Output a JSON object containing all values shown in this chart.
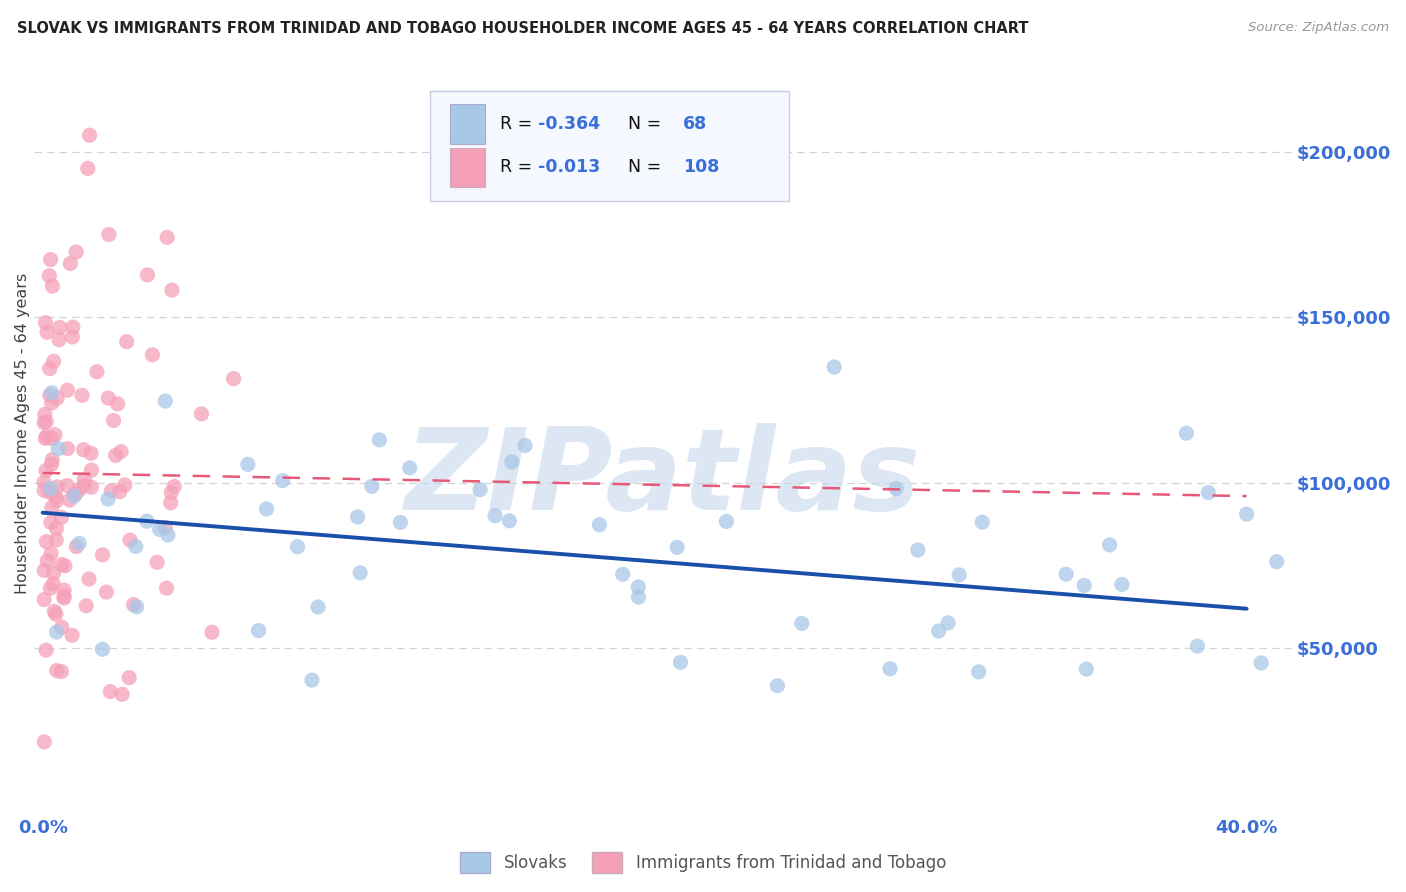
{
  "title": "SLOVAK VS IMMIGRANTS FROM TRINIDAD AND TOBAGO HOUSEHOLDER INCOME AGES 45 - 64 YEARS CORRELATION CHART",
  "source": "Source: ZipAtlas.com",
  "ylabel": "Householder Income Ages 45 - 64 years",
  "xlim": [
    -0.003,
    0.415
  ],
  "ylim": [
    0,
    230000
  ],
  "yticks": [
    50000,
    100000,
    150000,
    200000
  ],
  "ytick_labels": [
    "$50,000",
    "$100,000",
    "$150,000",
    "$200,000"
  ],
  "xtick_positions": [
    0.0,
    0.1,
    0.2,
    0.3,
    0.4
  ],
  "xtick_labels": [
    "0.0%",
    "",
    "",
    "",
    "40.0%"
  ],
  "blue_R": -0.364,
  "blue_N": 68,
  "pink_R": -0.013,
  "pink_N": 108,
  "blue_dot_color": "#a8c8e8",
  "pink_dot_color": "#f5a0b8",
  "blue_line_color": "#1a4faa",
  "pink_line_color": "#e85878",
  "grid_color": "#cccccc",
  "bg_color": "#ffffff",
  "watermark_color": "#c5d8ec",
  "title_color": "#222222",
  "tick_color": "#3a6fd8",
  "ylabel_color": "#444444",
  "legend_bg": "#f5f8ff",
  "legend_border": "#c8cce0",
  "blue_line_x0": 0.0,
  "blue_line_x1": 0.4,
  "blue_line_y0": 91000,
  "blue_line_y1": 62000,
  "pink_line_x0": 0.0,
  "pink_line_x1": 0.4,
  "pink_line_y0": 103000,
  "pink_line_y1": 96000
}
